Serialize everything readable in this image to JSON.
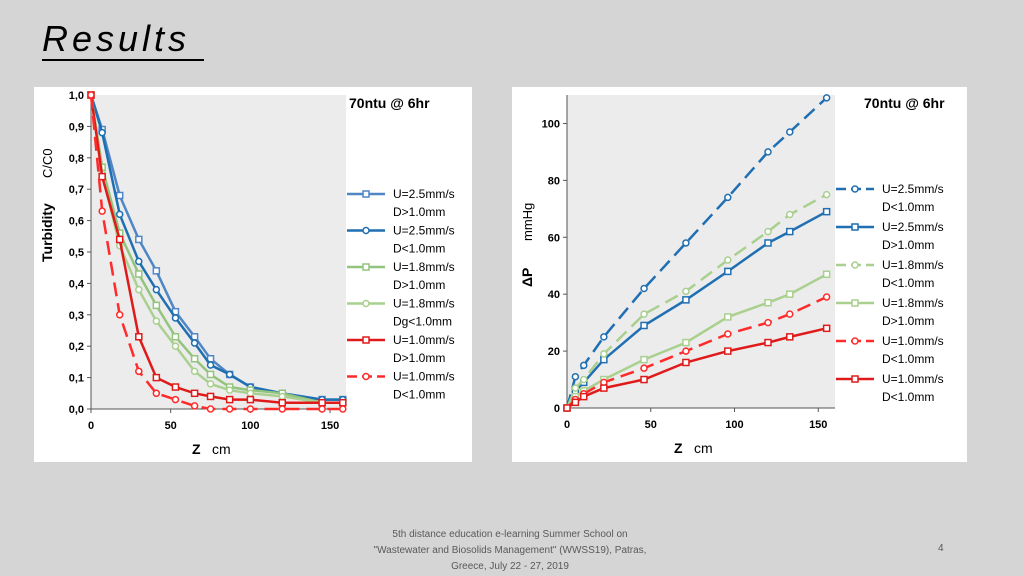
{
  "slide": {
    "title": "Results",
    "footer_lines": [
      "5th distance education e-learning Summer School on",
      "\"Wastewater and Biosolids Management\" (WWSS19), Patras,",
      "Greece, July 22 - 27, 2019"
    ],
    "page_number": "4"
  },
  "chart_data": [
    {
      "type": "line",
      "title": "70ntu @ 6hr",
      "xlabel": "Z",
      "xunit": "cm",
      "ylabel": "Turbidity",
      "yunit": "C/C0",
      "xlim": [
        0,
        160
      ],
      "ylim": [
        0,
        1
      ],
      "xticks": [
        "0",
        "50",
        "100",
        "150"
      ],
      "yticks": [
        "0,0",
        "0,1",
        "0,2",
        "0,3",
        "0,4",
        "0,5",
        "0,6",
        "0,7",
        "0,8",
        "0,9",
        "1,0"
      ],
      "grid": false,
      "background": "#ececec",
      "legend": "right",
      "series": [
        {
          "name": "U=2.5mm/s",
          "name2": "D>1.0mm",
          "color": "#4f86c6",
          "marker": "square",
          "dash": "solid",
          "x": [
            0,
            7,
            18,
            30,
            41,
            53,
            65,
            75,
            87,
            100,
            120,
            145,
            158
          ],
          "y": [
            1.0,
            0.89,
            0.68,
            0.54,
            0.44,
            0.31,
            0.23,
            0.16,
            0.11,
            0.07,
            0.05,
            0.03,
            0.03
          ]
        },
        {
          "name": "U=2.5mm/s",
          "name2": "D<1.0mm",
          "color": "#1f6fb2",
          "marker": "circle",
          "dash": "solid",
          "x": [
            0,
            7,
            18,
            30,
            41,
            53,
            65,
            75,
            87,
            100,
            120,
            145,
            158
          ],
          "y": [
            1.0,
            0.88,
            0.62,
            0.47,
            0.38,
            0.29,
            0.21,
            0.14,
            0.11,
            0.07,
            0.05,
            0.03,
            0.03
          ]
        },
        {
          "name": "U=1.8mm/s",
          "name2": "D>1.0mm",
          "color": "#93c47d",
          "marker": "square",
          "dash": "solid",
          "x": [
            0,
            7,
            18,
            30,
            41,
            53,
            65,
            75,
            87,
            100,
            120,
            145,
            158
          ],
          "y": [
            1.0,
            0.77,
            0.56,
            0.43,
            0.33,
            0.23,
            0.16,
            0.11,
            0.07,
            0.06,
            0.05,
            0.02,
            0.02
          ]
        },
        {
          "name": "U=1.8mm/s",
          "name2": "Dg<1.0mm",
          "color": "#a9d08e",
          "marker": "circle",
          "dash": "solid",
          "x": [
            0,
            7,
            18,
            30,
            41,
            53,
            65,
            75,
            87,
            100,
            120,
            145,
            158
          ],
          "y": [
            1.0,
            0.75,
            0.52,
            0.38,
            0.28,
            0.2,
            0.12,
            0.08,
            0.06,
            0.05,
            0.04,
            0.02,
            0.02
          ]
        },
        {
          "name": "U=1.0mm/s",
          "name2": "D>1.0mm",
          "color": "#e01a1a",
          "marker": "square",
          "dash": "solid",
          "x": [
            0,
            7,
            18,
            30,
            41,
            53,
            65,
            75,
            87,
            100,
            120,
            145,
            158
          ],
          "y": [
            1.0,
            0.74,
            0.54,
            0.23,
            0.1,
            0.07,
            0.05,
            0.04,
            0.03,
            0.03,
            0.02,
            0.02,
            0.02
          ]
        },
        {
          "name": "U=1.0mm/s",
          "name2": "D<1.0mm",
          "color": "#ff2a2a",
          "marker": "circle",
          "dash": "dash",
          "x": [
            0,
            7,
            18,
            30,
            41,
            53,
            65,
            75,
            87,
            100,
            120,
            145,
            158
          ],
          "y": [
            1.0,
            0.63,
            0.3,
            0.12,
            0.05,
            0.03,
            0.01,
            0.0,
            0.0,
            0.0,
            0.0,
            0.0,
            0.0
          ]
        }
      ]
    },
    {
      "type": "line",
      "title": "70ntu @ 6hr",
      "xlabel": "Z",
      "xunit": "cm",
      "ylabel": "ΔP",
      "yunit": "mmHg",
      "xlim": [
        0,
        160
      ],
      "ylim": [
        0,
        110
      ],
      "xticks": [
        "0",
        "50",
        "100",
        "150"
      ],
      "yticks": [
        "0",
        "20",
        "40",
        "60",
        "80",
        "100"
      ],
      "grid": false,
      "background": "#ececec",
      "legend": "right",
      "series": [
        {
          "name": "U=2.5mm/s",
          "name2": "D<1.0mm",
          "color": "#1f6fb2",
          "marker": "circle",
          "dash": "dash",
          "x": [
            0,
            5,
            10,
            22,
            46,
            71,
            96,
            120,
            133,
            155
          ],
          "y": [
            0,
            11,
            15,
            25,
            42,
            58,
            74,
            90,
            97,
            109
          ]
        },
        {
          "name": "U=2.5mm/s",
          "name2": "D>1.0mm",
          "color": "#1f6fb2",
          "marker": "square",
          "dash": "solid",
          "x": [
            0,
            5,
            10,
            22,
            46,
            71,
            96,
            120,
            133,
            155
          ],
          "y": [
            0,
            6,
            9,
            17,
            29,
            38,
            48,
            58,
            62,
            69
          ]
        },
        {
          "name": "U=1.8mm/s",
          "name2": "D<1.0mm",
          "color": "#a9d08e",
          "marker": "circle",
          "dash": "dash",
          "x": [
            0,
            5,
            10,
            22,
            46,
            71,
            96,
            120,
            133,
            155
          ],
          "y": [
            0,
            7,
            10,
            19,
            33,
            41,
            52,
            62,
            68,
            75
          ]
        },
        {
          "name": "U=1.8mm/s",
          "name2": "D>1.0mm",
          "color": "#a9d08e",
          "marker": "square",
          "dash": "solid",
          "x": [
            0,
            5,
            10,
            22,
            46,
            71,
            96,
            120,
            133,
            155
          ],
          "y": [
            0,
            4,
            6,
            10,
            17,
            23,
            32,
            37,
            40,
            47
          ]
        },
        {
          "name": "U=1.0mm/s",
          "name2": "D<1.0mm",
          "color": "#ff2a2a",
          "marker": "circle",
          "dash": "dash",
          "x": [
            0,
            5,
            10,
            22,
            46,
            71,
            96,
            120,
            133,
            155
          ],
          "y": [
            0,
            3,
            5,
            9,
            14,
            20,
            26,
            30,
            33,
            39
          ]
        },
        {
          "name": "U=1.0mm/s",
          "name2": "D<1.0mm",
          "color": "#e01a1a",
          "marker": "square",
          "dash": "solid",
          "x": [
            0,
            5,
            10,
            22,
            46,
            71,
            96,
            120,
            133,
            155
          ],
          "y": [
            0,
            2,
            4,
            7,
            10,
            16,
            20,
            23,
            25,
            28
          ]
        }
      ]
    }
  ]
}
